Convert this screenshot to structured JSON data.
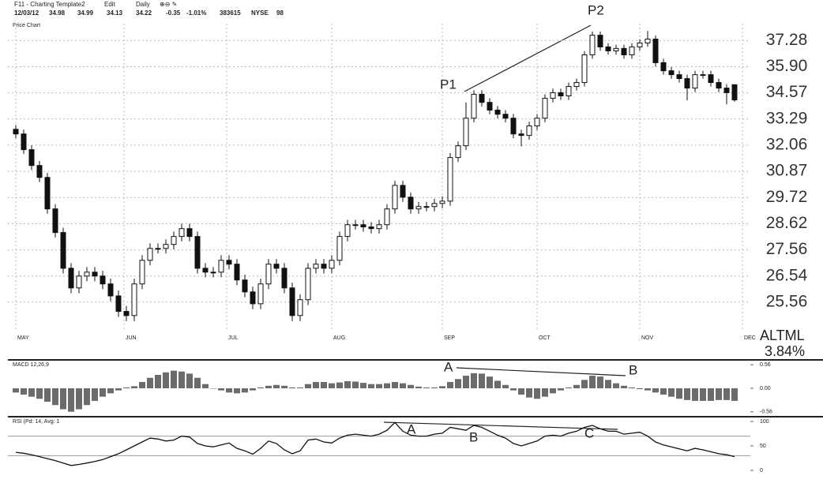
{
  "header": {
    "template": "F11 - Charting Template2",
    "edit": "Edit",
    "period": "Daily",
    "quote": [
      "12/03/12",
      "34.98",
      "34.99",
      "34.13",
      "34.22",
      "-0.35",
      "-1.01%",
      "383615",
      "NYSE",
      "98"
    ]
  },
  "watermark": {
    "symbol": "ALTML",
    "change": "3.84%"
  },
  "chart_data": [
    {
      "type": "candlestick",
      "title": "Price Chart",
      "log": true,
      "grid": true,
      "xlim": [
        -1,
        93
      ],
      "xticks": [
        {
          "value": 0,
          "label": "MAY"
        },
        {
          "value": 13.7,
          "label": "JUN"
        },
        {
          "value": 26.7,
          "label": "JUL"
        },
        {
          "value": 40,
          "label": "AUG"
        },
        {
          "value": 54,
          "label": "SEP"
        },
        {
          "value": 66,
          "label": "OCT"
        },
        {
          "value": 79,
          "label": "NOV"
        },
        {
          "value": 92,
          "label": "DEC"
        }
      ],
      "ylim": [
        24.5,
        38.2
      ],
      "yticks": [
        37.28,
        {
          "value": 35.9,
          "label": "35.90"
        },
        34.57,
        33.29,
        32.06,
        30.87,
        29.72,
        28.62,
        27.56,
        26.54,
        25.56
      ],
      "up_color": "#ffffff",
      "down_color": "#111111",
      "annotations": [
        "P1",
        "P2"
      ],
      "open": [
        32.8,
        32.58,
        31.85,
        31.13,
        30.6,
        29.24,
        28.26,
        26.84,
        26.09,
        26.54,
        26.69,
        26.54,
        26.24,
        25.79,
        25.22,
        25.07,
        26.24,
        27.15,
        27.62,
        27.62,
        27.78,
        28.1,
        28.42,
        28.1,
        26.84,
        26.69,
        26.69,
        27.15,
        27.0,
        26.39,
        25.94,
        25.5,
        26.24,
        27.0,
        26.84,
        26.09,
        25.07,
        25.65,
        26.84,
        27.0,
        26.84,
        27.15,
        28.1,
        28.58,
        28.58,
        28.49,
        28.42,
        28.58,
        29.24,
        30.25,
        29.74,
        29.24,
        29.34,
        29.34,
        29.47,
        29.57,
        31.49,
        32.03,
        33.33,
        34.5,
        34.1,
        33.72,
        33.52,
        33.33,
        32.58,
        32.51,
        32.96,
        33.33,
        34.3,
        34.58,
        34.42,
        34.89,
        35.09,
        36.52,
        37.57,
        36.94,
        36.73,
        36.86,
        36.52,
        36.94,
        37.15,
        37.36,
        36.11,
        35.69,
        35.49,
        35.29,
        34.81,
        35.49,
        35.49,
        35.09,
        34.81,
        34.98
      ],
      "high": [
        33.0,
        32.78,
        32.05,
        31.33,
        30.8,
        29.44,
        28.46,
        27.04,
        26.74,
        26.89,
        26.89,
        26.74,
        26.44,
        25.99,
        25.42,
        26.44,
        27.35,
        27.82,
        27.82,
        27.98,
        28.3,
        28.62,
        28.62,
        28.3,
        27.04,
        26.89,
        27.35,
        27.35,
        27.2,
        26.59,
        26.14,
        26.44,
        27.2,
        27.2,
        27.04,
        26.29,
        25.85,
        27.04,
        27.2,
        27.2,
        27.35,
        28.3,
        28.78,
        28.78,
        28.78,
        28.69,
        28.78,
        29.44,
        30.45,
        30.45,
        29.94,
        29.54,
        29.54,
        29.67,
        29.77,
        31.69,
        32.23,
        34.1,
        34.7,
        34.7,
        34.3,
        33.92,
        33.72,
        33.53,
        32.78,
        33.16,
        33.53,
        34.5,
        34.78,
        34.78,
        35.09,
        35.29,
        36.72,
        37.77,
        37.77,
        37.14,
        37.06,
        37.06,
        37.14,
        37.35,
        37.8,
        37.56,
        36.31,
        35.89,
        35.69,
        35.49,
        35.69,
        35.69,
        35.69,
        35.29,
        35.01,
        34.99
      ],
      "low": [
        32.38,
        31.65,
        30.93,
        30.4,
        29.04,
        28.06,
        26.64,
        25.89,
        25.89,
        26.34,
        26.34,
        26.04,
        25.59,
        25.02,
        24.87,
        24.87,
        26.04,
        26.95,
        27.42,
        27.42,
        27.58,
        27.9,
        27.9,
        26.64,
        26.49,
        26.49,
        26.49,
        26.8,
        26.19,
        25.74,
        25.3,
        25.3,
        26.04,
        26.64,
        25.89,
        24.87,
        24.87,
        25.45,
        26.64,
        26.64,
        26.64,
        26.95,
        27.9,
        28.38,
        28.29,
        28.22,
        28.22,
        28.38,
        29.04,
        29.54,
        29.04,
        29.04,
        29.14,
        29.14,
        29.27,
        29.37,
        31.29,
        31.83,
        33.13,
        33.9,
        33.52,
        33.32,
        33.13,
        32.38,
        32.0,
        32.31,
        32.76,
        33.13,
        34.1,
        34.22,
        34.22,
        34.69,
        34.89,
        36.32,
        36.74,
        36.53,
        36.53,
        36.32,
        36.32,
        36.74,
        36.95,
        35.91,
        35.49,
        35.29,
        35.09,
        34.2,
        34.61,
        35.29,
        34.89,
        34.61,
        34.0,
        34.13
      ],
      "close": [
        32.58,
        31.85,
        31.13,
        30.6,
        29.24,
        28.26,
        26.84,
        26.09,
        26.54,
        26.69,
        26.54,
        26.24,
        25.79,
        25.22,
        25.07,
        26.24,
        27.15,
        27.62,
        27.62,
        27.78,
        28.1,
        28.42,
        28.1,
        26.84,
        26.69,
        26.69,
        27.15,
        27.0,
        26.39,
        25.94,
        25.5,
        26.24,
        27.0,
        26.84,
        26.09,
        25.07,
        25.65,
        26.84,
        27.0,
        26.84,
        27.15,
        28.1,
        28.58,
        28.58,
        28.49,
        28.42,
        28.58,
        29.24,
        30.25,
        29.74,
        29.24,
        29.34,
        29.34,
        29.47,
        29.57,
        31.49,
        32.03,
        33.33,
        34.5,
        34.1,
        33.72,
        33.52,
        33.33,
        32.58,
        32.51,
        32.96,
        33.33,
        34.3,
        34.58,
        34.42,
        34.89,
        35.09,
        36.52,
        37.57,
        36.94,
        36.73,
        36.86,
        36.52,
        36.94,
        37.15,
        37.36,
        36.11,
        35.69,
        35.49,
        35.29,
        34.81,
        35.49,
        35.49,
        35.09,
        34.81,
        34.58,
        34.22
      ]
    },
    {
      "type": "bar",
      "title": "MACD 12,26,9",
      "color": "#6b6b6b",
      "ylim": [
        -0.64,
        0.64
      ],
      "yticks": [
        0.56,
        {
          "value": 0,
          "label": "0.00"
        },
        -0.56
      ],
      "annotations": [
        "A",
        "B"
      ],
      "values": [
        -0.1,
        -0.15,
        -0.2,
        -0.25,
        -0.32,
        -0.4,
        -0.5,
        -0.56,
        -0.5,
        -0.4,
        -0.3,
        -0.2,
        -0.12,
        -0.05,
        0.02,
        0.05,
        0.15,
        0.25,
        0.32,
        0.38,
        0.42,
        0.4,
        0.35,
        0.25,
        0.1,
        0,
        -0.05,
        -0.1,
        -0.12,
        -0.1,
        -0.05,
        0.02,
        0.06,
        0.08,
        0.06,
        0.02,
        0.02,
        0.1,
        0.15,
        0.15,
        0.12,
        0.14,
        0.17,
        0.16,
        0.13,
        0.1,
        0.1,
        0.12,
        0.15,
        0.12,
        0.08,
        0.04,
        0.02,
        0.02,
        0.05,
        0.15,
        0.22,
        0.3,
        0.36,
        0.35,
        0.28,
        0.18,
        0.08,
        -0.05,
        -0.15,
        -0.22,
        -0.25,
        -0.2,
        -0.12,
        -0.05,
        0.02,
        0.08,
        0.2,
        0.3,
        0.28,
        0.2,
        0.12,
        0.06,
        0.02,
        -0.02,
        -0.05,
        -0.1,
        -0.15,
        -0.2,
        -0.25,
        -0.28,
        -0.3,
        -0.3,
        -0.3,
        -0.28,
        -0.28,
        -0.3
      ]
    },
    {
      "type": "line",
      "title": "RSI (Pd: 14, Avg: 1",
      "color": "#111111",
      "ylim": [
        -6.5,
        106.5
      ],
      "yticks": [
        100,
        50,
        0
      ],
      "bands": [
        70,
        30
      ],
      "annotations": [
        "A",
        "B",
        "C"
      ],
      "values": [
        37,
        35,
        32,
        28,
        24,
        20,
        15,
        10,
        12,
        15,
        18,
        22,
        28,
        34,
        42,
        50,
        58,
        66,
        64,
        60,
        62,
        70,
        68,
        55,
        50,
        48,
        52,
        56,
        45,
        40,
        33,
        45,
        60,
        55,
        42,
        34,
        40,
        62,
        64,
        58,
        56,
        66,
        72,
        74,
        72,
        70,
        74,
        82,
        98,
        80,
        72,
        70,
        70,
        74,
        76,
        88,
        85,
        82,
        92,
        88,
        80,
        72,
        66,
        55,
        50,
        55,
        60,
        70,
        72,
        70,
        76,
        80,
        88,
        92,
        85,
        80,
        80,
        74,
        76,
        78,
        70,
        58,
        52,
        48,
        44,
        40,
        45,
        42,
        38,
        34,
        32,
        28
      ]
    }
  ]
}
